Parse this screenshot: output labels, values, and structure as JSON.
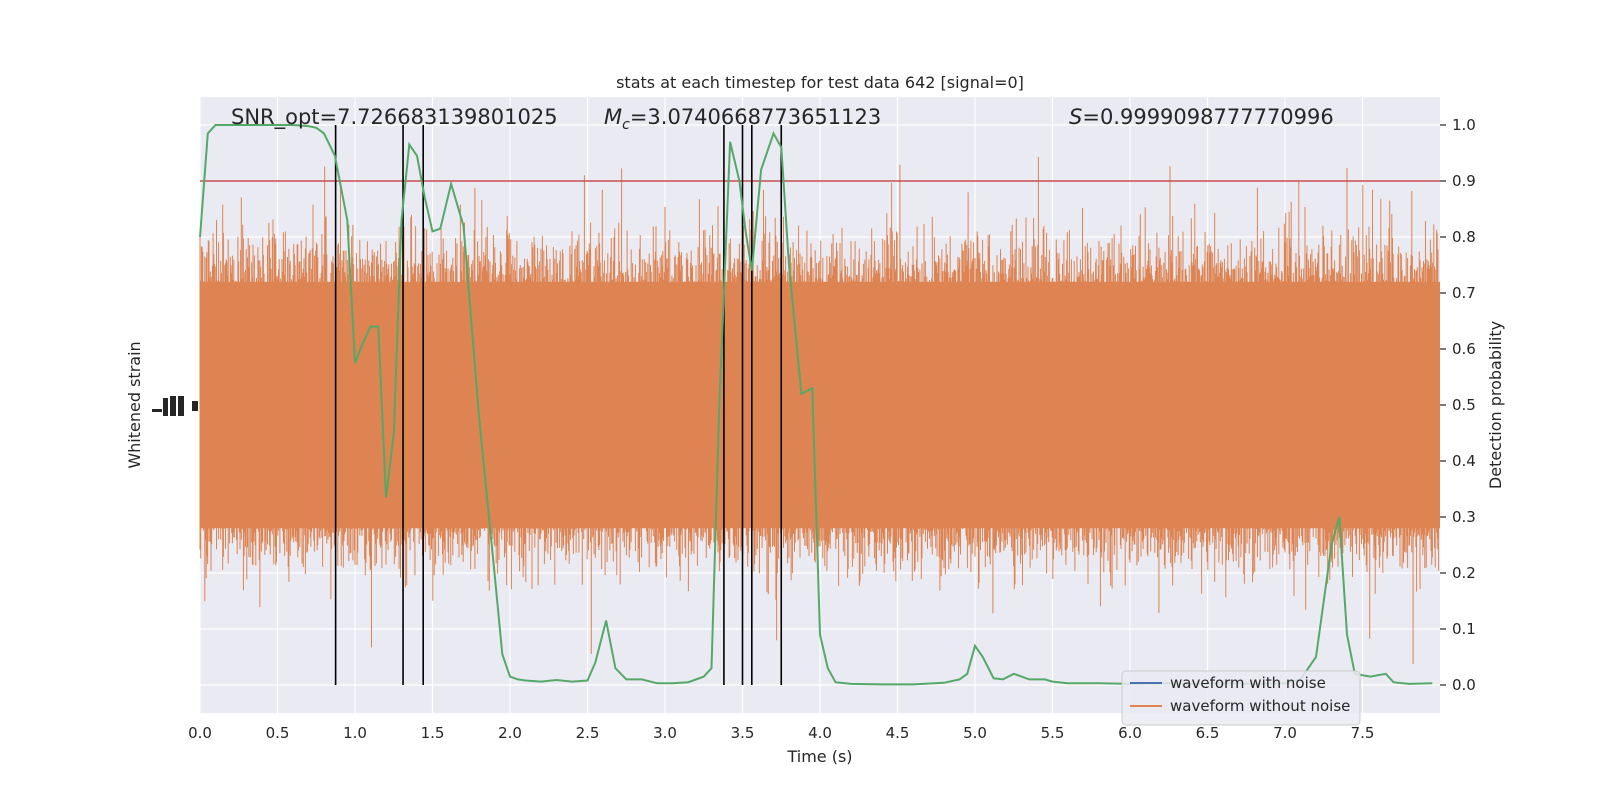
{
  "chart_data": {
    "type": "line",
    "title": "stats at each timestep for test data 642 [signal=0]",
    "xlabel": "Time (s)",
    "ylabel_left": "Whitened strain",
    "ylabel_right": "Detection probability",
    "xlim": [
      0,
      8
    ],
    "ylim_right": [
      -0.05,
      1.05
    ],
    "x_ticks": [
      "0.0",
      "0.5",
      "1.0",
      "1.5",
      "2.0",
      "2.5",
      "3.0",
      "3.5",
      "4.0",
      "4.5",
      "5.0",
      "5.5",
      "6.0",
      "6.5",
      "7.0",
      "7.5"
    ],
    "y_ticks_right": [
      "0.0",
      "0.1",
      "0.2",
      "0.3",
      "0.4",
      "0.5",
      "0.6",
      "0.7",
      "0.8",
      "0.9",
      "1.0"
    ],
    "grid": true,
    "threshold": 0.9,
    "annotations": {
      "snr": "SNR_opt=7.726683139801025",
      "mc_symbol": "M",
      "mc_sub": "c",
      "mc_value": "=3.0740668773651123",
      "s_symbol": "S",
      "s_value": "=0.9999098777770996"
    },
    "detection_times": [
      0.875,
      1.31,
      1.44,
      3.38,
      3.5,
      3.56,
      3.75
    ],
    "legend_position": "lower-right",
    "series": [
      {
        "name": "waveform with noise",
        "color": "#4c72b0"
      },
      {
        "name": "waveform without noise",
        "color": "#dd8452"
      }
    ],
    "probability_color": "#55a868",
    "threshold_color": "#c44e52",
    "probability": {
      "t": [
        0.0,
        0.05,
        0.1,
        0.2,
        0.3,
        0.4,
        0.5,
        0.6,
        0.7,
        0.75,
        0.8,
        0.87,
        0.95,
        1.0,
        1.05,
        1.1,
        1.15,
        1.2,
        1.25,
        1.3,
        1.35,
        1.4,
        1.45,
        1.5,
        1.55,
        1.62,
        1.7,
        1.8,
        1.9,
        1.95,
        2.0,
        2.05,
        2.1,
        2.2,
        2.3,
        2.4,
        2.5,
        2.55,
        2.62,
        2.68,
        2.75,
        2.85,
        2.95,
        3.05,
        3.15,
        3.25,
        3.3,
        3.35,
        3.42,
        3.48,
        3.52,
        3.56,
        3.62,
        3.7,
        3.75,
        3.8,
        3.88,
        3.95,
        4.0,
        4.05,
        4.1,
        4.2,
        4.4,
        4.6,
        4.8,
        4.9,
        4.95,
        5.0,
        5.05,
        5.12,
        5.18,
        5.25,
        5.35,
        5.45,
        5.5,
        5.6,
        5.8,
        6.0,
        6.2,
        6.4,
        6.6,
        6.8,
        7.0,
        7.1,
        7.2,
        7.3,
        7.35,
        7.4,
        7.45,
        7.55,
        7.65,
        7.7,
        7.8,
        7.95
      ],
      "p": [
        0.8,
        0.985,
        1.0,
        1.0,
        1.0,
        1.0,
        1.0,
        1.0,
        0.998,
        0.995,
        0.985,
        0.945,
        0.83,
        0.575,
        0.61,
        0.64,
        0.64,
        0.335,
        0.45,
        0.83,
        0.965,
        0.945,
        0.87,
        0.81,
        0.815,
        0.895,
        0.82,
        0.48,
        0.2,
        0.055,
        0.015,
        0.01,
        0.008,
        0.006,
        0.009,
        0.006,
        0.008,
        0.04,
        0.115,
        0.03,
        0.01,
        0.01,
        0.003,
        0.003,
        0.005,
        0.015,
        0.03,
        0.5,
        0.97,
        0.9,
        0.81,
        0.74,
        0.92,
        0.985,
        0.96,
        0.75,
        0.52,
        0.53,
        0.09,
        0.03,
        0.005,
        0.002,
        0.001,
        0.001,
        0.004,
        0.01,
        0.02,
        0.07,
        0.05,
        0.012,
        0.01,
        0.02,
        0.01,
        0.01,
        0.006,
        0.003,
        0.003,
        0.002,
        0.003,
        0.002,
        0.003,
        0.002,
        0.003,
        0.01,
        0.05,
        0.25,
        0.3,
        0.09,
        0.02,
        0.015,
        0.02,
        0.005,
        0.002,
        0.003
      ]
    }
  }
}
